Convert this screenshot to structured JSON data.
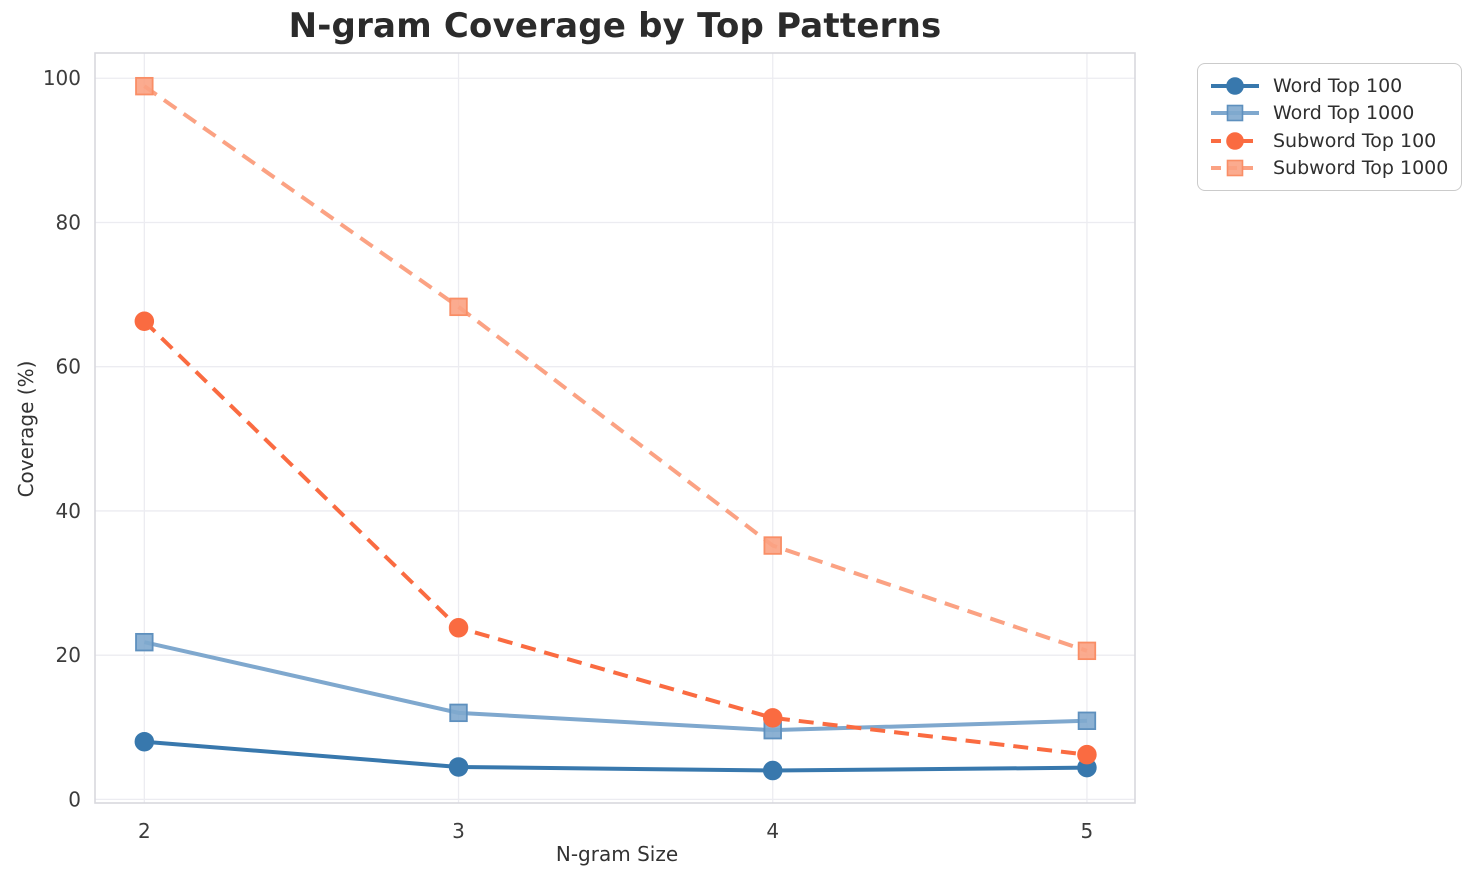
{
  "title": "N-gram Coverage by Top Patterns",
  "chart_data": {
    "type": "line",
    "title": "N-gram Coverage by Top Patterns",
    "xlabel": "N-gram Size",
    "ylabel": "Coverage (%)",
    "x": [
      2,
      3,
      4,
      5
    ],
    "xticks": [
      "2",
      "3",
      "4",
      "5"
    ],
    "yticks": [
      0,
      20,
      40,
      60,
      80,
      100
    ],
    "xlim": [
      1.843,
      5.153
    ],
    "ylim": [
      -0.5,
      103.5
    ],
    "grid": true,
    "legend_position": "outside-top-right",
    "series": [
      {
        "name": "Word Top 100",
        "values": [
          8.0,
          4.5,
          4.0,
          4.4
        ],
        "color": "#3878AD",
        "edge": "#3878AD",
        "marker": "circle",
        "dash": "solid"
      },
      {
        "name": "Word Top 1000",
        "values": [
          21.8,
          12.0,
          9.6,
          10.9
        ],
        "color": "#7FA8CE",
        "edge": "#5E90BE",
        "marker": "square",
        "dash": "solid"
      },
      {
        "name": "Subword Top 100",
        "values": [
          66.3,
          23.8,
          11.3,
          6.2
        ],
        "color": "#FA6B41",
        "edge": "#FA6B41",
        "marker": "circle",
        "dash": "dashed"
      },
      {
        "name": "Subword Top 1000",
        "values": [
          98.9,
          68.3,
          35.2,
          20.6
        ],
        "color": "#FBA283",
        "edge": "#F98E66",
        "marker": "square",
        "dash": "dashed"
      }
    ],
    "colors": {
      "grid": "#ECECF1",
      "spine": "#D8D8DE",
      "tick_text": "#3C3C3C",
      "title_text": "#2B2B2B"
    }
  }
}
